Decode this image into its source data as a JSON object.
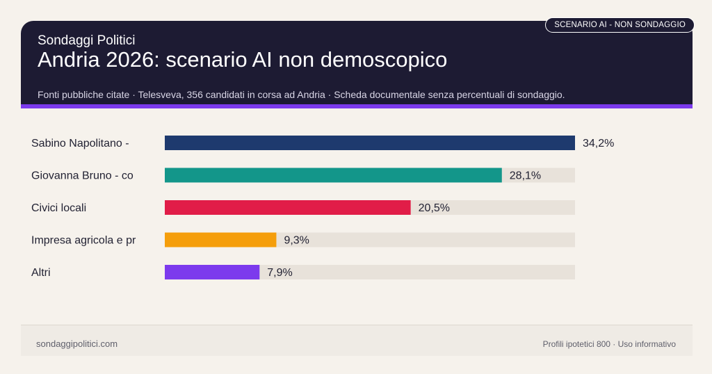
{
  "header": {
    "badge": "SCENARIO AI - NON SONDAGGIO",
    "brand": "Sondaggi Politici",
    "title": "Andria 2026: scenario AI non demoscopico",
    "subtitle": "Fonti pubbliche citate · Telesveva, 356 candidati in corsa ad Andria · Scheda documentale senza percentuali di sondaggio."
  },
  "chart_data": {
    "type": "bar",
    "orientation": "horizontal",
    "categories": [
      "Sabino Napolitano -",
      "Giovanna Bruno - co",
      "Civici locali",
      "Impresa agricola e pr",
      "Altri"
    ],
    "values": [
      34.2,
      28.1,
      20.5,
      9.3,
      7.9
    ],
    "value_labels": [
      "34,2%",
      "28,1%",
      "20,5%",
      "9,3%",
      "7,9%"
    ],
    "colors": [
      "#1e3a6e",
      "#13968a",
      "#e11d48",
      "#f59e0b",
      "#7c3aed"
    ],
    "track_color": "#e8e2da",
    "xlim": [
      0,
      34.2
    ],
    "grid": false,
    "legend": "none"
  },
  "footer": {
    "site": "sondaggipolitici.com",
    "note": "Profili ipotetici 800 · Uso informativo"
  }
}
